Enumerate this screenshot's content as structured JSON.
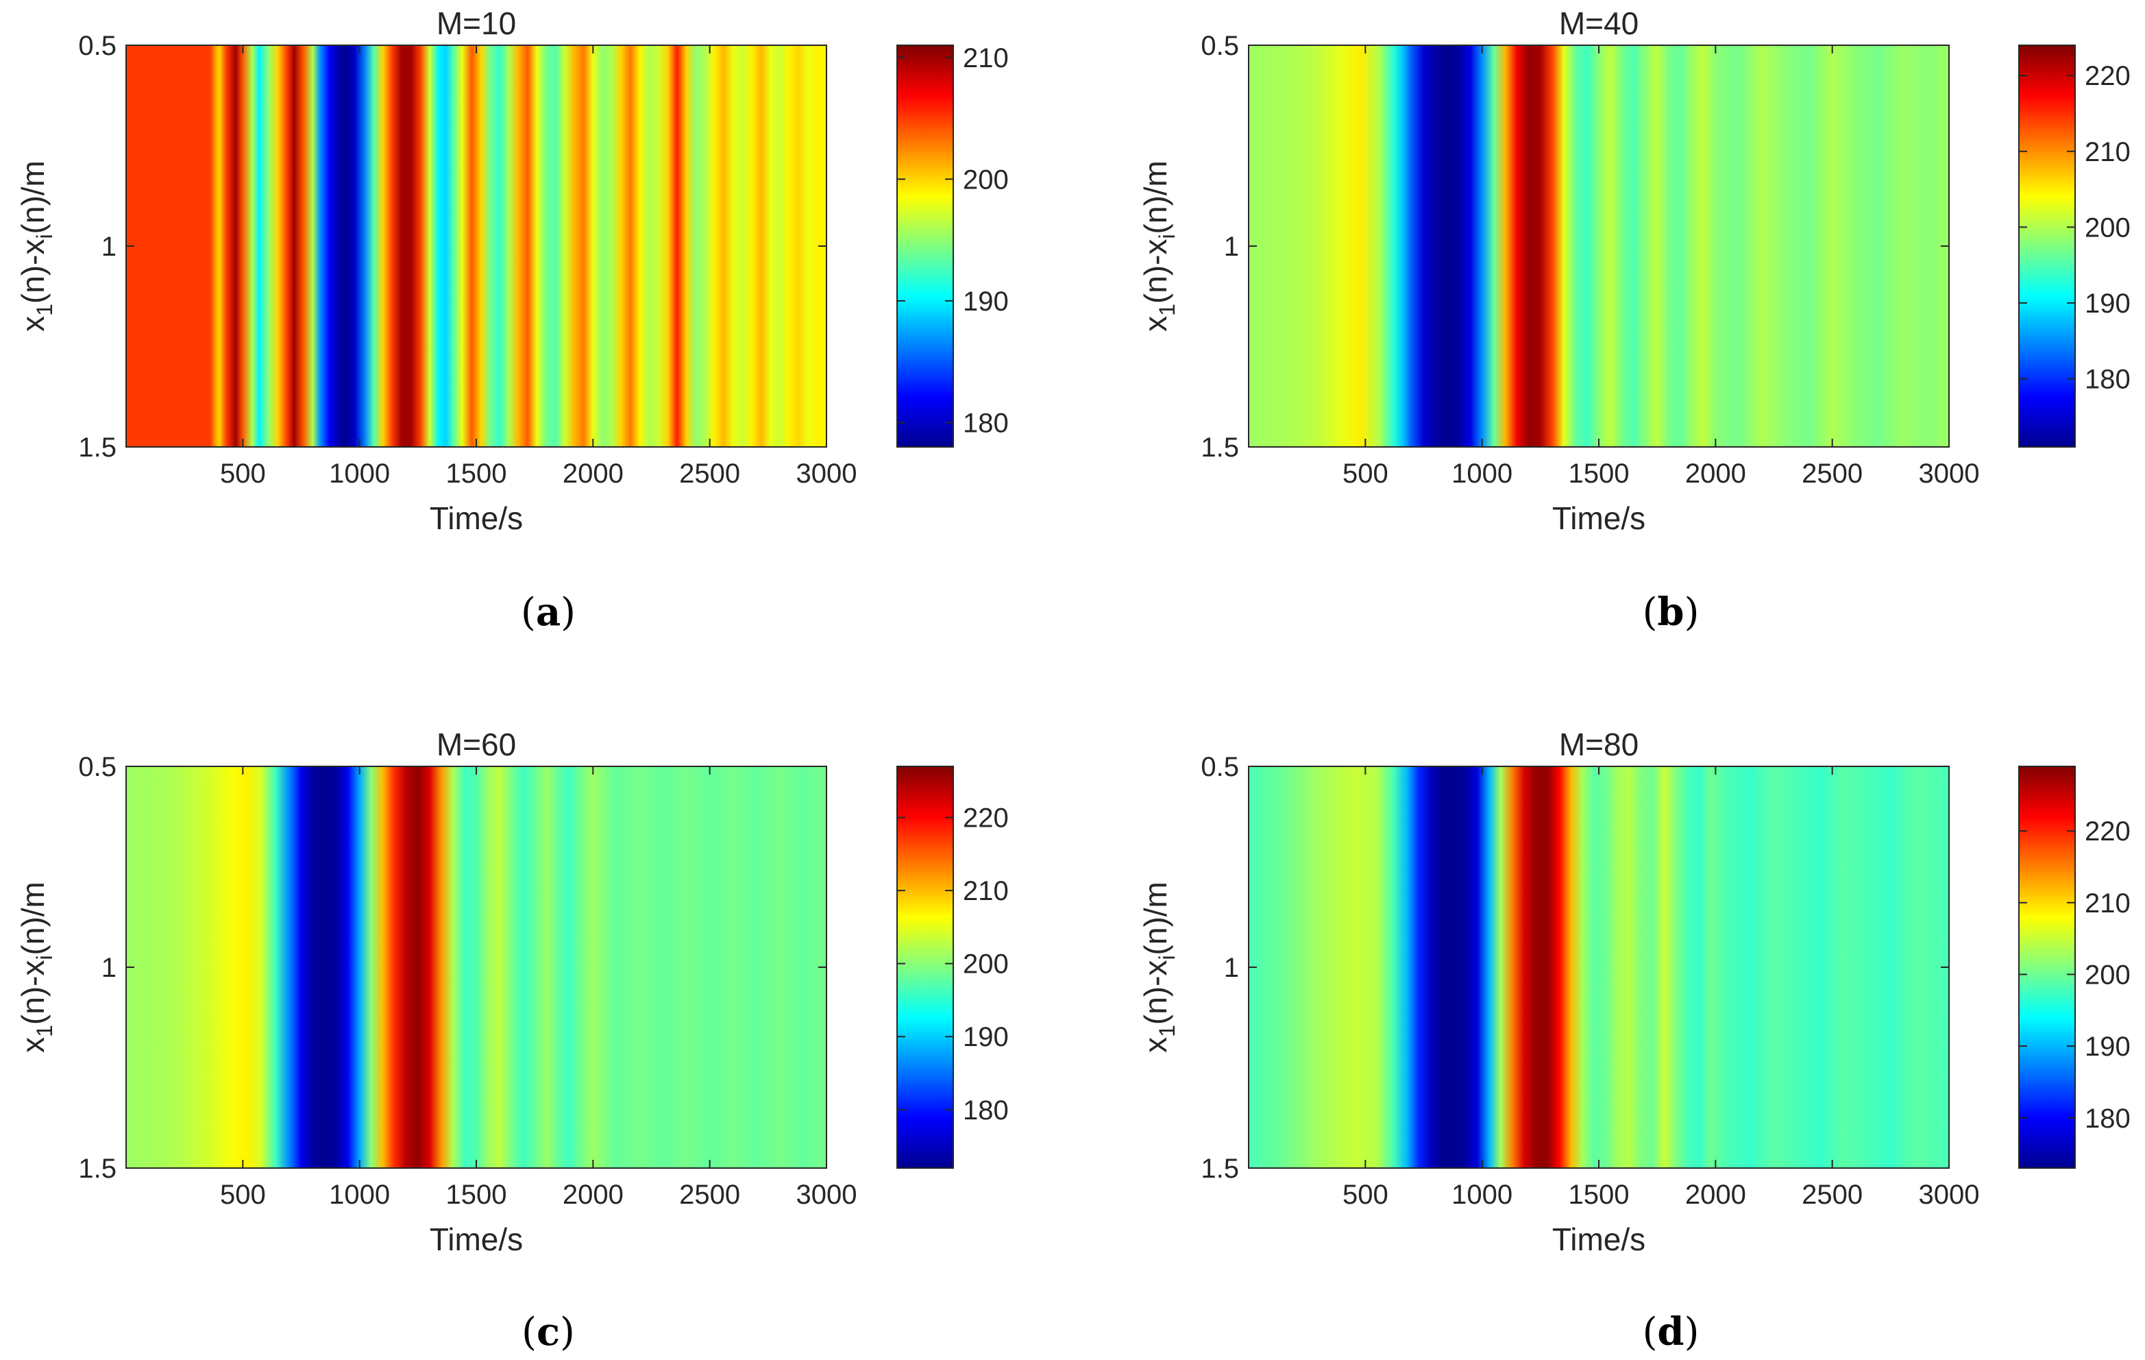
{
  "figure": {
    "colormap": [
      "#00008f",
      "#0000ff",
      "#0080ff",
      "#00ffff",
      "#80ff80",
      "#ffff00",
      "#ff8000",
      "#ff0000",
      "#800000"
    ]
  },
  "chart_data": [
    {
      "type": "heatmap",
      "panel": "(a)",
      "caption_letter": "a",
      "title": "M=10",
      "xlabel": "Time/s",
      "ylabel": "x1(n)-xi(n)/m",
      "ylabel_parts": {
        "a": "x",
        "b": "1",
        "c": "(n)-x",
        "d": "i",
        "e": "(n)/m"
      },
      "xlim": [
        0,
        3000
      ],
      "ylim": [
        0.5,
        1.5
      ],
      "xticks": [
        "500",
        "1000",
        "1500",
        "2000",
        "2500",
        "3000"
      ],
      "yticks": [
        "0.5",
        "1",
        "1.5"
      ],
      "colorbar": {
        "range": [
          178,
          211
        ],
        "ticks": [
          "180",
          "190",
          "200",
          "210"
        ]
      },
      "note": "values are constant along the y axis; profile given over time",
      "time": [
        0,
        360,
        380,
        400,
        430,
        470,
        500,
        540,
        570,
        610,
        650,
        690,
        720,
        760,
        800,
        830,
        870,
        910,
        940,
        980,
        1020,
        1060,
        1100,
        1140,
        1180,
        1220,
        1260,
        1300,
        1340,
        1370,
        1400,
        1440,
        1480,
        1520,
        1560,
        1600,
        1640,
        1680,
        1720,
        1760,
        1800,
        1840,
        1880,
        1920,
        1960,
        2000,
        2040,
        2080,
        2120,
        2160,
        2200,
        2240,
        2280,
        2320,
        2360,
        2400,
        2440,
        2480,
        2520,
        2560,
        2600,
        2640,
        2680,
        2720,
        2760,
        2800,
        2840,
        2880,
        2920,
        2960,
        3000
      ],
      "values": [
        205,
        205,
        202,
        200,
        205,
        210,
        204,
        196,
        190,
        195,
        200,
        205,
        210,
        204,
        196,
        187,
        182,
        179,
        178,
        180,
        186,
        193,
        200,
        205,
        210,
        210,
        205,
        197,
        190,
        189,
        193,
        198,
        204,
        200,
        194,
        192,
        196,
        201,
        204,
        198,
        194,
        193,
        197,
        201,
        203,
        198,
        195,
        196,
        200,
        203,
        199,
        196,
        197,
        200,
        206,
        200,
        195,
        196,
        199,
        201,
        198,
        197,
        199,
        201,
        198,
        197,
        199,
        200,
        198,
        199,
        199
      ]
    },
    {
      "type": "heatmap",
      "panel": "(b)",
      "caption_letter": "b",
      "title": "M=40",
      "xlabel": "Time/s",
      "ylabel": "x1(n)-xi(n)/m",
      "ylabel_parts": {
        "a": "x",
        "b": "1",
        "c": "(n)-x",
        "d": "i",
        "e": "(n)/m"
      },
      "xlim": [
        0,
        3000
      ],
      "ylim": [
        0.5,
        1.5
      ],
      "xticks": [
        "500",
        "1000",
        "1500",
        "2000",
        "2500",
        "3000"
      ],
      "yticks": [
        "0.5",
        "1",
        "1.5"
      ],
      "colorbar": {
        "range": [
          171,
          224
        ],
        "ticks": [
          "180",
          "190",
          "200",
          "210",
          "220"
        ]
      },
      "note": "values are constant along the y axis; profile given over time",
      "time": [
        0,
        200,
        300,
        400,
        480,
        560,
        620,
        660,
        700,
        750,
        800,
        850,
        900,
        950,
        1000,
        1050,
        1100,
        1150,
        1200,
        1250,
        1300,
        1350,
        1400,
        1450,
        1500,
        1550,
        1600,
        1650,
        1700,
        1750,
        1800,
        1850,
        1900,
        1950,
        2000,
        2100,
        2200,
        2300,
        2400,
        2500,
        2600,
        2700,
        2800,
        2900,
        3000
      ],
      "values": [
        199,
        200,
        201,
        203,
        205,
        200,
        193,
        188,
        182,
        175,
        172,
        171,
        172,
        176,
        185,
        196,
        208,
        218,
        223,
        222,
        214,
        203,
        196,
        194,
        198,
        201,
        197,
        195,
        198,
        201,
        197,
        196,
        199,
        201,
        198,
        197,
        200,
        198,
        197,
        200,
        198,
        197,
        199,
        198,
        199
      ]
    },
    {
      "type": "heatmap",
      "panel": "(c)",
      "caption_letter": "c",
      "title": "M=60",
      "xlabel": "Time/s",
      "ylabel": "x1(n)-xi(n)/m",
      "ylabel_parts": {
        "a": "x",
        "b": "1",
        "c": "(n)-x",
        "d": "i",
        "e": "(n)/m"
      },
      "xlim": [
        0,
        3000
      ],
      "ylim": [
        0.5,
        1.5
      ],
      "xticks": [
        "500",
        "1000",
        "1500",
        "2000",
        "2500",
        "3000"
      ],
      "yticks": [
        "0.5",
        "1",
        "1.5"
      ],
      "colorbar": {
        "range": [
          172,
          227
        ],
        "ticks": [
          "180",
          "190",
          "200",
          "210",
          "220"
        ]
      },
      "note": "values are constant along the y axis; profile given over time",
      "time": [
        0,
        200,
        350,
        450,
        520,
        580,
        640,
        700,
        750,
        800,
        850,
        900,
        950,
        1000,
        1050,
        1100,
        1150,
        1200,
        1250,
        1300,
        1350,
        1400,
        1450,
        1500,
        1550,
        1600,
        1650,
        1700,
        1750,
        1800,
        1850,
        1900,
        1950,
        2000,
        2100,
        2200,
        2300,
        2400,
        2500,
        2600,
        2700,
        2800,
        2900,
        3000
      ],
      "values": [
        201,
        202,
        204,
        206,
        207,
        204,
        196,
        186,
        178,
        173,
        172,
        173,
        178,
        188,
        200,
        210,
        218,
        224,
        226,
        222,
        212,
        202,
        196,
        197,
        201,
        203,
        199,
        196,
        198,
        201,
        198,
        196,
        199,
        201,
        198,
        199,
        198,
        199,
        198,
        199,
        198,
        199,
        198,
        199
      ]
    },
    {
      "type": "heatmap",
      "panel": "(d)",
      "caption_letter": "d",
      "title": "M=80",
      "xlabel": "Time/s",
      "ylabel": "x1(n)-xi(n)/m",
      "ylabel_parts": {
        "a": "x",
        "b": "1",
        "c": "(n)-x",
        "d": "i",
        "e": "(n)/m"
      },
      "xlim": [
        0,
        3000
      ],
      "ylim": [
        0.5,
        1.5
      ],
      "xticks": [
        "500",
        "1000",
        "1500",
        "2000",
        "2500",
        "3000"
      ],
      "yticks": [
        "0.5",
        "1",
        "1.5"
      ],
      "colorbar": {
        "range": [
          173,
          229
        ],
        "ticks": [
          "180",
          "190",
          "200",
          "210",
          "220"
        ]
      },
      "note": "values are constant along the y axis; profile given over time",
      "time": [
        0,
        150,
        300,
        450,
        550,
        620,
        680,
        730,
        780,
        830,
        880,
        930,
        980,
        1030,
        1080,
        1130,
        1180,
        1230,
        1280,
        1330,
        1380,
        1430,
        1480,
        1530,
        1580,
        1630,
        1680,
        1730,
        1780,
        1830,
        1880,
        1930,
        1980,
        2050,
        2150,
        2250,
        2350,
        2450,
        2550,
        2650,
        2750,
        2850,
        3000
      ],
      "values": [
        198,
        200,
        203,
        205,
        204,
        198,
        190,
        182,
        176,
        173,
        173,
        174,
        178,
        190,
        203,
        215,
        224,
        228,
        228,
        222,
        212,
        203,
        199,
        200,
        203,
        204,
        201,
        200,
        205,
        201,
        198,
        197,
        200,
        198,
        197,
        199,
        198,
        197,
        199,
        198,
        197,
        199,
        198
      ]
    }
  ]
}
